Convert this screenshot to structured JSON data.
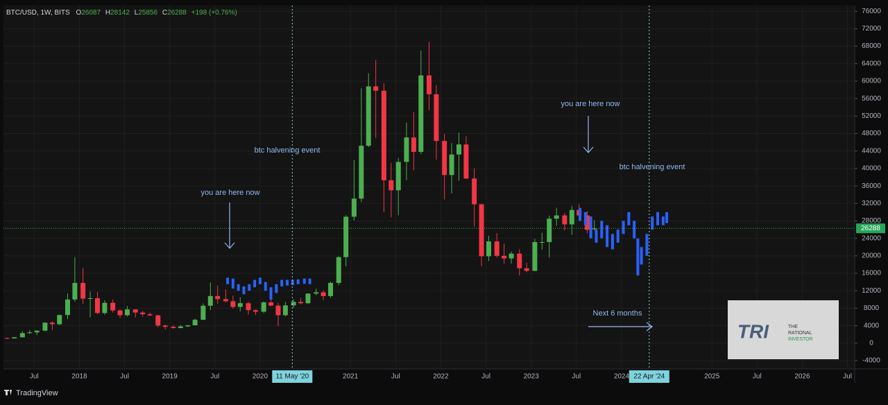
{
  "chart_data": {
    "type": "candlestick",
    "symbol": "BTC/USD, 1W, BITS",
    "ohlc_labels": [
      "O",
      "H",
      "L",
      "C"
    ],
    "ohlc_values": [
      26087,
      28142,
      25856,
      26288
    ],
    "change_label": "+198 (+0.76%)",
    "x": [
      2017.2,
      2017.28,
      2017.37,
      2017.45,
      2017.53,
      2017.62,
      2017.7,
      2017.78,
      2017.87,
      2017.95,
      2018.04,
      2018.12,
      2018.2,
      2018.28,
      2018.37,
      2018.45,
      2018.53,
      2018.62,
      2018.7,
      2018.78,
      2018.87,
      2018.95,
      2019.04,
      2019.12,
      2019.2,
      2019.28,
      2019.37,
      2019.45,
      2019.53,
      2019.62,
      2019.7,
      2019.78,
      2019.87,
      2019.95,
      2020.04,
      2020.12,
      2020.2,
      2020.28,
      2020.37,
      2020.45,
      2020.53,
      2020.62,
      2020.7,
      2020.78,
      2020.87,
      2020.95,
      2021.04,
      2021.12,
      2021.2,
      2021.28,
      2021.37,
      2021.45,
      2021.53,
      2021.62,
      2021.7,
      2021.78,
      2021.87,
      2021.95,
      2022.04,
      2022.12,
      2022.2,
      2022.28,
      2022.37,
      2022.45,
      2022.53,
      2022.62,
      2022.7,
      2022.78,
      2022.87,
      2022.95,
      2023.04,
      2023.12,
      2023.2,
      2023.28,
      2023.37,
      2023.45,
      2023.53,
      2023.62,
      2023.7
    ],
    "open": [
      1190,
      1080,
      1350,
      2300,
      2480,
      2870,
      4700,
      4340,
      6450,
      10000,
      13800,
      10200,
      10300,
      6900,
      9240,
      7500,
      6400,
      7730,
      7020,
      6630,
      6370,
      4040,
      3740,
      3460,
      3850,
      4100,
      5350,
      8570,
      10800,
      10100,
      9600,
      8300,
      9150,
      7560,
      7200,
      9350,
      8600,
      6400,
      8650,
      9450,
      9140,
      11350,
      11650,
      10780,
      13800,
      19700,
      28950,
      33100,
      45200,
      58800,
      57800,
      37300,
      35000,
      41500,
      47100,
      43800,
      61300,
      57000,
      46300,
      38500,
      43200,
      45500,
      37700,
      31800,
      19900,
      23300,
      20000,
      19400,
      20500,
      17150,
      16550,
      23150,
      23150,
      28500,
      29250,
      27200,
      30500,
      29250,
      26087
    ],
    "high": [
      1280,
      1350,
      2760,
      2980,
      2900,
      4750,
      5000,
      6470,
      11400,
      19700,
      17200,
      11800,
      11700,
      9800,
      9990,
      7760,
      8500,
      7750,
      7400,
      7000,
      6550,
      4300,
      4100,
      4200,
      4150,
      5600,
      9100,
      13900,
      13200,
      12300,
      10900,
      10500,
      9500,
      7750,
      9550,
      10500,
      9180,
      9450,
      10050,
      10400,
      11450,
      12480,
      12100,
      14100,
      19900,
      29300,
      41950,
      58350,
      61800,
      64850,
      59500,
      41300,
      42400,
      50500,
      52900,
      67000,
      69000,
      59100,
      47900,
      45800,
      48200,
      47400,
      40000,
      31900,
      24600,
      25200,
      22800,
      21000,
      21500,
      18400,
      23900,
      25300,
      29200,
      31000,
      29800,
      31400,
      31800,
      30200,
      28142
    ],
    "low": [
      890,
      1060,
      1350,
      2100,
      1840,
      2700,
      2980,
      4100,
      5500,
      9500,
      9000,
      5900,
      6600,
      6500,
      7000,
      5750,
      6100,
      5880,
      6100,
      6200,
      3650,
      3150,
      3350,
      3400,
      3700,
      4050,
      5300,
      7600,
      9000,
      9400,
      7900,
      7300,
      6550,
      6450,
      6900,
      8450,
      3850,
      6150,
      8100,
      8900,
      8950,
      10980,
      9880,
      10400,
      13250,
      17600,
      28100,
      32300,
      44900,
      47000,
      30000,
      28800,
      29300,
      37300,
      39600,
      43300,
      53300,
      42000,
      32900,
      34300,
      37200,
      37600,
      26700,
      17600,
      18800,
      19600,
      18200,
      18200,
      15500,
      16300,
      16500,
      21400,
      19600,
      26900,
      25800,
      24800,
      28900,
      25200,
      25856
    ],
    "close": [
      1080,
      1350,
      2300,
      2480,
      2870,
      4700,
      4340,
      6450,
      10000,
      13800,
      10200,
      10300,
      6900,
      9240,
      7500,
      6400,
      7730,
      7020,
      6630,
      6370,
      4040,
      3740,
      3460,
      3850,
      4100,
      5350,
      8570,
      10800,
      10100,
      9600,
      8300,
      9150,
      7560,
      7200,
      9350,
      8600,
      6400,
      8650,
      9450,
      9140,
      11350,
      11650,
      10780,
      13800,
      19700,
      28950,
      33100,
      45200,
      58800,
      57800,
      37300,
      35000,
      41500,
      47100,
      43800,
      61300,
      57000,
      46300,
      38500,
      43200,
      45500,
      37700,
      31800,
      19900,
      23300,
      20000,
      19400,
      20500,
      17150,
      16550,
      23150,
      23150,
      28500,
      29250,
      27200,
      30500,
      29250,
      25950,
      26288
    ],
    "up_color": "#4caf50",
    "down_color": "#f23645",
    "projections": [
      {
        "color": "#2962ff",
        "x": [
          2019.64,
          2019.7,
          2019.76,
          2019.82,
          2019.88,
          2019.94,
          2020.0,
          2020.06,
          2020.12,
          2020.18,
          2020.24,
          2020.3,
          2020.36,
          2020.42,
          2020.49,
          2020.55
        ],
        "high": [
          15000,
          14800,
          13500,
          13000,
          13500,
          14500,
          15000,
          14000,
          12800,
          13500,
          14500,
          14500,
          14500,
          14600,
          14800,
          14800
        ],
        "low": [
          13500,
          12500,
          12000,
          11200,
          12000,
          12800,
          13500,
          12000,
          10000,
          11500,
          13000,
          13200,
          13300,
          13500,
          13600,
          13500
        ]
      },
      {
        "color": "#2962ff",
        "x": [
          2023.54,
          2023.6,
          2023.66,
          2023.72,
          2023.78,
          2023.84,
          2023.9,
          2023.96,
          2024.02,
          2024.08,
          2024.14,
          2024.18,
          2024.22,
          2024.28,
          2024.34,
          2024.4,
          2024.46,
          2024.5
        ],
        "high": [
          31000,
          30000,
          29000,
          26000,
          28000,
          27000,
          25000,
          26000,
          28000,
          30000,
          28000,
          24000,
          22000,
          25000,
          29000,
          30000,
          29000,
          30000
        ],
        "low": [
          28000,
          27000,
          24000,
          23000,
          24000,
          22000,
          21500,
          23000,
          25000,
          27000,
          24000,
          15500,
          18000,
          20000,
          26000,
          27000,
          27000,
          27500
        ]
      }
    ],
    "last_price": 26288,
    "events": [
      {
        "x": 2020.356,
        "label": "11 May '20"
      },
      {
        "x": 2024.306,
        "label": "22 Apr '24"
      }
    ],
    "annotations": [
      "btc halvening event",
      "you are here now",
      "btc halvening event",
      "you are here now",
      "Next 6 months"
    ],
    "xlim": [
      2017.16,
      2026.58
    ],
    "xticks": [
      {
        "value": 2017.5,
        "label": "Jul"
      },
      {
        "value": 2018,
        "label": "2018"
      },
      {
        "value": 2018.5,
        "label": "Jul"
      },
      {
        "value": 2019,
        "label": "2019"
      },
      {
        "value": 2019.5,
        "label": "Jul"
      },
      {
        "value": 2020,
        "label": "2020"
      },
      {
        "value": 2021,
        "label": "2021"
      },
      {
        "value": 2021.5,
        "label": "Jul"
      },
      {
        "value": 2022,
        "label": "2022"
      },
      {
        "value": 2022.5,
        "label": "Jul"
      },
      {
        "value": 2023,
        "label": "2023"
      },
      {
        "value": 2023.5,
        "label": "Jul"
      },
      {
        "value": 2024,
        "label": "2024"
      },
      {
        "value": 2025,
        "label": "2025"
      },
      {
        "value": 2025.5,
        "label": "Jul"
      },
      {
        "value": 2026,
        "label": "2026"
      },
      {
        "value": 2026.5,
        "label": "Jul"
      }
    ],
    "ylim": [
      -5900,
      77300
    ],
    "yticks": [
      -4000,
      0,
      4000,
      8000,
      12000,
      16000,
      20000,
      24000,
      28000,
      32000,
      36000,
      40000,
      44000,
      48000,
      52000,
      56000,
      60000,
      64000,
      68000,
      72000,
      76000
    ],
    "grid": true
  },
  "watermark": {
    "logo": "TRI",
    "name": [
      "THE",
      "RATIONAL",
      "INVESTOR"
    ]
  },
  "footer": "TradingView"
}
